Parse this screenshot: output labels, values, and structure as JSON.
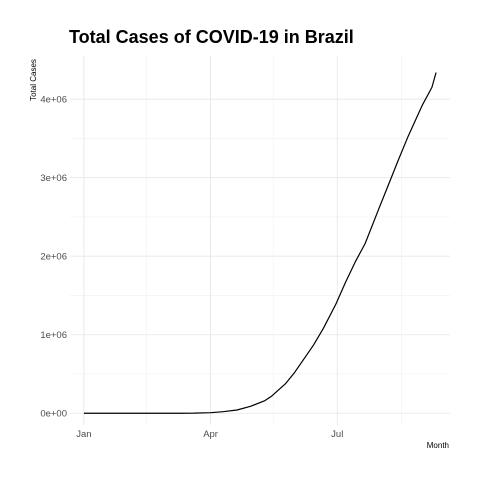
{
  "chart_data": {
    "type": "line",
    "title": "Total Cases of COVID-19 in Brazil",
    "xlabel": "Month",
    "ylabel": "Total Cases",
    "x_ticks": [
      "Jan",
      "Apr",
      "Jul"
    ],
    "y_ticks": [
      "0e+00",
      "1e+06",
      "2e+06",
      "3e+06",
      "4e+06"
    ],
    "y_tick_values": [
      0,
      1000000,
      2000000,
      3000000,
      4000000
    ],
    "ylim": [
      -150000,
      4550000
    ],
    "xlim": [
      "2019-12-22",
      "2020-09-20"
    ],
    "grid": true,
    "legend": "none",
    "series": [
      {
        "color": "#000000",
        "x": [
          "2020-01-01",
          "2020-02-01",
          "2020-02-26",
          "2020-03-10",
          "2020-03-20",
          "2020-04-01",
          "2020-04-10",
          "2020-04-20",
          "2020-04-30",
          "2020-05-10",
          "2020-05-15",
          "2020-05-20",
          "2020-05-25",
          "2020-05-31",
          "2020-06-07",
          "2020-06-14",
          "2020-06-21",
          "2020-06-30",
          "2020-07-07",
          "2020-07-14",
          "2020-07-21",
          "2020-07-31",
          "2020-08-07",
          "2020-08-14",
          "2020-08-21",
          "2020-08-31",
          "2020-09-07",
          "2020-09-10"
        ],
        "values": [
          0,
          0,
          1,
          30,
          900,
          6900,
          19600,
          41000,
          90000,
          160000,
          220000,
          300000,
          380000,
          510000,
          690000,
          870000,
          1080000,
          1390000,
          1670000,
          1930000,
          2160000,
          2610000,
          2920000,
          3230000,
          3530000,
          3920000,
          4150000,
          4340000
        ]
      }
    ]
  }
}
